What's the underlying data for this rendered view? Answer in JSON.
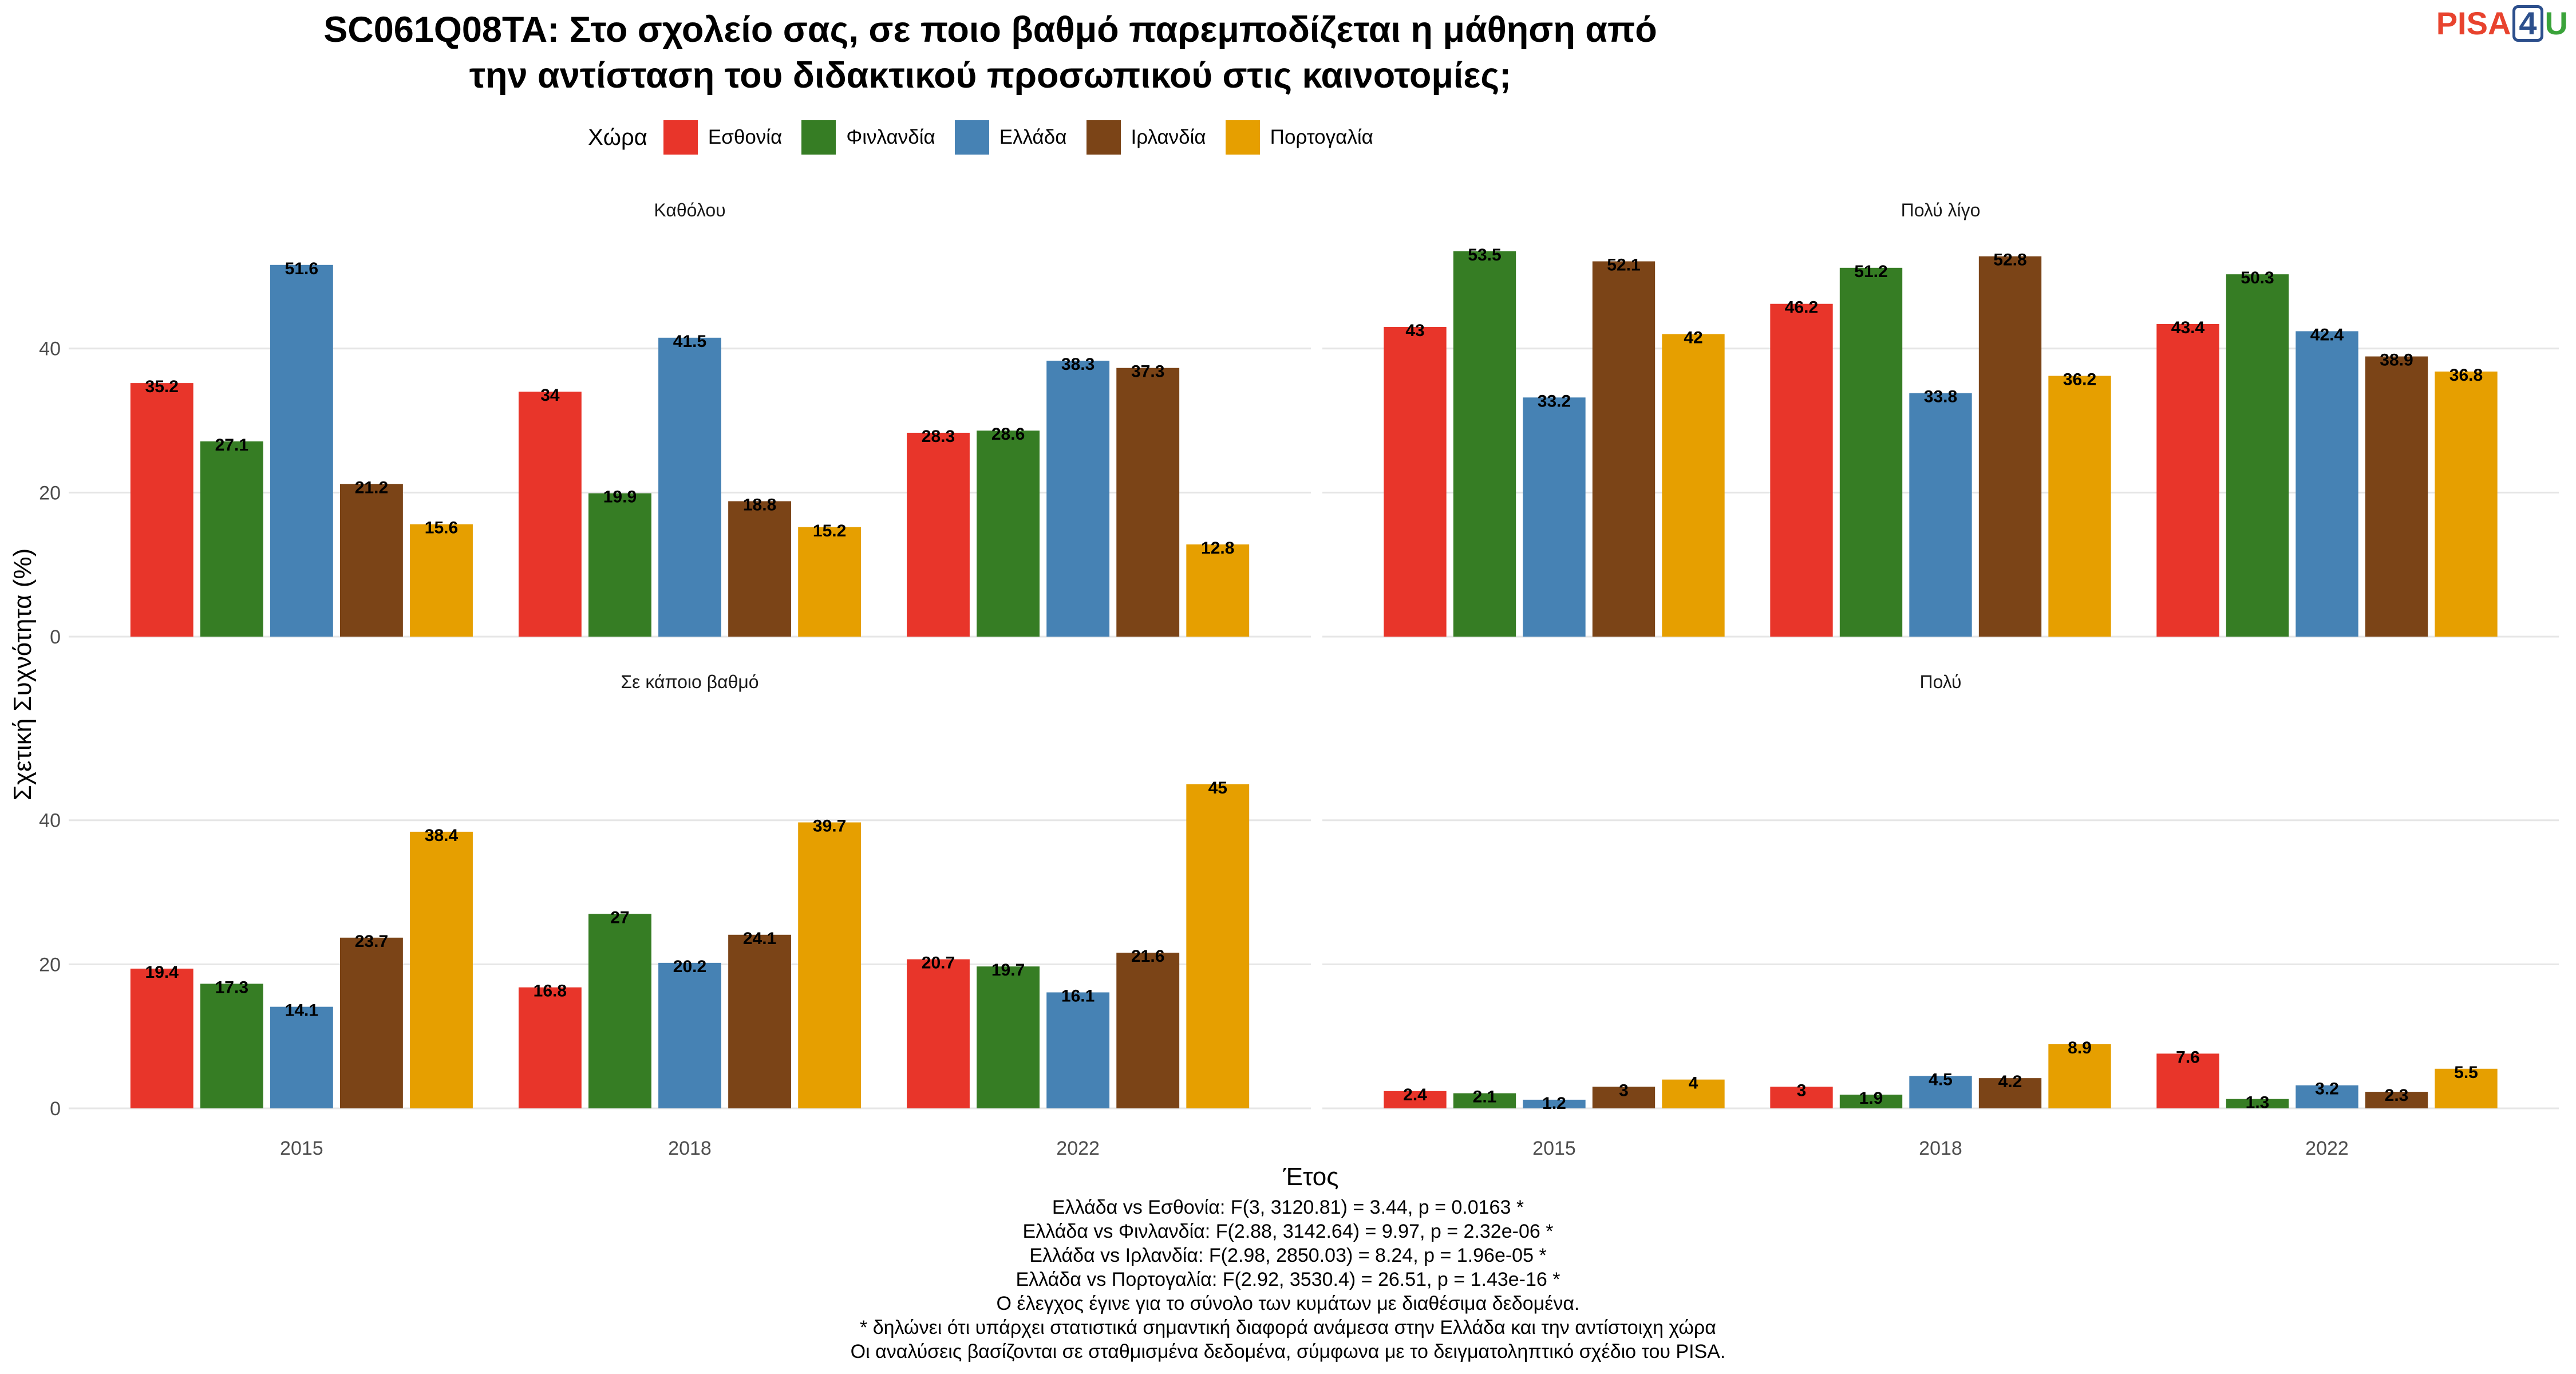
{
  "chart_data": {
    "type": "bar",
    "title": [
      "SC061Q08TA: Στο σχολείο σας, σε ποιο βαθμό παρεμποδίζεται η μάθηση από",
      "την αντίσταση του διδακτικού προσωπικού στις καινοτομίες;"
    ],
    "xlabel": "Έτος",
    "ylabel": "Σχετική Συχνότητα (%)",
    "legend_title": "Χώρα",
    "legend_position": "top",
    "ylim": [
      0,
      55
    ],
    "yticks": [
      0,
      20,
      40
    ],
    "grid": true,
    "categories": [
      "2015",
      "2018",
      "2022"
    ],
    "series_meta": [
      {
        "name": "Εσθονία",
        "color": "#e8352a"
      },
      {
        "name": "Φινλανδία",
        "color": "#367d24"
      },
      {
        "name": "Ελλάδα",
        "color": "#4682b4"
      },
      {
        "name": "Ιρλανδία",
        "color": "#7b4417"
      },
      {
        "name": "Πορτογαλία",
        "color": "#e69f00"
      }
    ],
    "panels": [
      {
        "title": "Καθόλου",
        "series": [
          {
            "name": "Εσθονία",
            "values": [
              35.2,
              34,
              28.3
            ]
          },
          {
            "name": "Φινλανδία",
            "values": [
              27.1,
              19.9,
              28.6
            ]
          },
          {
            "name": "Ελλάδα",
            "values": [
              51.6,
              41.5,
              38.3
            ]
          },
          {
            "name": "Ιρλανδία",
            "values": [
              21.2,
              18.8,
              37.3
            ]
          },
          {
            "name": "Πορτογαλία",
            "values": [
              15.6,
              15.2,
              12.8
            ]
          }
        ]
      },
      {
        "title": "Πολύ λίγο",
        "series": [
          {
            "name": "Εσθονία",
            "values": [
              43,
              46.2,
              43.4
            ]
          },
          {
            "name": "Φινλανδία",
            "values": [
              53.5,
              51.2,
              50.3
            ]
          },
          {
            "name": "Ελλάδα",
            "values": [
              33.2,
              33.8,
              42.4
            ]
          },
          {
            "name": "Ιρλανδία",
            "values": [
              52.1,
              52.8,
              38.9
            ]
          },
          {
            "name": "Πορτογαλία",
            "values": [
              42,
              36.2,
              36.8
            ]
          }
        ]
      },
      {
        "title": "Σε κάποιο βαθμό",
        "series": [
          {
            "name": "Εσθονία",
            "values": [
              19.4,
              16.8,
              20.7
            ]
          },
          {
            "name": "Φινλανδία",
            "values": [
              17.3,
              27,
              19.7
            ]
          },
          {
            "name": "Ελλάδα",
            "values": [
              14.1,
              20.2,
              16.1
            ]
          },
          {
            "name": "Ιρλανδία",
            "values": [
              23.7,
              24.1,
              21.6
            ]
          },
          {
            "name": "Πορτογαλία",
            "values": [
              38.4,
              39.7,
              45
            ]
          }
        ]
      },
      {
        "title": "Πολύ",
        "series": [
          {
            "name": "Εσθονία",
            "values": [
              2.4,
              3,
              7.6
            ]
          },
          {
            "name": "Φινλανδία",
            "values": [
              2.1,
              1.9,
              1.3
            ]
          },
          {
            "name": "Ελλάδα",
            "values": [
              1.2,
              4.5,
              3.2
            ]
          },
          {
            "name": "Ιρλανδία",
            "values": [
              3,
              4.2,
              2.3
            ]
          },
          {
            "name": "Πορτογαλία",
            "values": [
              4,
              8.9,
              5.5
            ]
          }
        ]
      }
    ],
    "notes": [
      "Ελλάδα vs Εσθονία: F(3, 3120.81) = 3.44, p = 0.0163 *",
      "Ελλάδα vs Φινλανδία: F(2.88, 3142.64) = 9.97, p = 2.32e-06 *",
      "Ελλάδα vs Ιρλανδία: F(2.98, 2850.03) = 8.24, p = 1.96e-05 *",
      "Ελλάδα vs Πορτογαλία: F(2.92, 3530.4) = 26.51, p = 1.43e-16 *",
      "Ο έλεγχος έγινε για το σύνολο των κυμάτων με διαθέσιμα δεδομένα.",
      "* δηλώνει ότι υπάρχει στατιστικά σημαντική διαφορά ανάμεσα στην Ελλάδα και την αντίστοιχη χώρα",
      "Οι αναλύσεις βασίζονται σε σταθμισμένα δεδομένα, σύμφωνα με το δειγματοληπτικό σχέδιο του PISA."
    ]
  },
  "logo": {
    "part1": "PISA",
    "part2": "4",
    "part3": "U"
  }
}
